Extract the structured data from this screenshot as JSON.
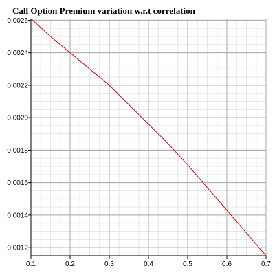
{
  "chart_data": {
    "type": "line",
    "title": "Call Option Premium variation w.r.t correlation",
    "xlabel": "",
    "ylabel": "",
    "xlim": [
      0.1,
      0.7
    ],
    "ylim": [
      0.00115,
      0.00261
    ],
    "x_ticks": [
      0.1,
      0.2,
      0.3,
      0.4,
      0.5,
      0.6,
      0.7
    ],
    "x_tick_labels": [
      "0.1",
      "0.2",
      "0.3",
      "0.4",
      "0.5",
      "0.6",
      "0.7"
    ],
    "y_ticks": [
      0.0012,
      0.0014,
      0.0016,
      0.0018,
      0.002,
      0.0022,
      0.0024,
      0.0026
    ],
    "y_tick_labels": [
      "0.0012",
      "0.0014",
      "0.0016",
      "0.0018",
      "0.0020",
      "0.0022",
      "0.0024",
      "0.0026"
    ],
    "grid": true,
    "line_color": "#e00000",
    "series": [
      {
        "x": [
          0.1,
          0.15,
          0.2,
          0.25,
          0.3,
          0.35,
          0.4,
          0.45,
          0.5,
          0.55,
          0.6,
          0.65,
          0.7
        ],
        "values": [
          0.00261,
          0.0025,
          0.0024,
          0.0023,
          0.0022,
          0.00208,
          0.00196,
          0.00184,
          0.00171,
          0.00157,
          0.00143,
          0.00129,
          0.00115
        ]
      }
    ]
  }
}
